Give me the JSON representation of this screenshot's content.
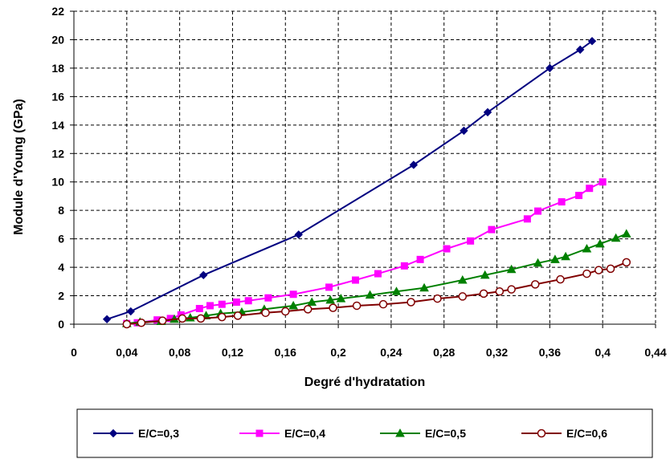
{
  "chart_data": {
    "type": "line",
    "xlabel": "Degré d'hydratation",
    "ylabel": "Module d'Young (GPa)",
    "xlim": [
      0,
      0.44
    ],
    "ylim": [
      0,
      22
    ],
    "x_ticks": [
      "0",
      "0,04",
      "0,08",
      "0,12",
      "0,16",
      "0,2",
      "0,24",
      "0,28",
      "0,32",
      "0,36",
      "0,4",
      "0,44"
    ],
    "y_ticks": [
      "0",
      "2",
      "4",
      "6",
      "8",
      "10",
      "12",
      "14",
      "16",
      "18",
      "20",
      "22"
    ],
    "grid": "dashed",
    "legend_position": "bottom",
    "series": [
      {
        "name": "E/C=0,3",
        "color": "#000080",
        "marker": "diamond",
        "points": [
          [
            0.025,
            0.35
          ],
          [
            0.043,
            0.9
          ],
          [
            0.098,
            3.45
          ],
          [
            0.17,
            6.3
          ],
          [
            0.257,
            11.2
          ],
          [
            0.295,
            13.6
          ],
          [
            0.313,
            14.9
          ],
          [
            0.36,
            18.0
          ],
          [
            0.383,
            19.3
          ],
          [
            0.392,
            19.9
          ]
        ]
      },
      {
        "name": "E/C=0,4",
        "color": "#ff00ff",
        "marker": "square",
        "points": [
          [
            0.04,
            0.05
          ],
          [
            0.048,
            0.1
          ],
          [
            0.063,
            0.3
          ],
          [
            0.073,
            0.4
          ],
          [
            0.081,
            0.65
          ],
          [
            0.095,
            1.1
          ],
          [
            0.103,
            1.3
          ],
          [
            0.112,
            1.4
          ],
          [
            0.123,
            1.55
          ],
          [
            0.132,
            1.65
          ],
          [
            0.147,
            1.85
          ],
          [
            0.166,
            2.1
          ],
          [
            0.193,
            2.6
          ],
          [
            0.213,
            3.1
          ],
          [
            0.23,
            3.55
          ],
          [
            0.25,
            4.1
          ],
          [
            0.262,
            4.55
          ],
          [
            0.282,
            5.3
          ],
          [
            0.3,
            5.85
          ],
          [
            0.316,
            6.65
          ],
          [
            0.343,
            7.4
          ],
          [
            0.351,
            7.95
          ],
          [
            0.369,
            8.6
          ],
          [
            0.382,
            9.05
          ],
          [
            0.39,
            9.55
          ],
          [
            0.4,
            10.0
          ]
        ]
      },
      {
        "name": "E/C=0,5",
        "color": "#008000",
        "marker": "triangle",
        "points": [
          [
            0.04,
            0.05
          ],
          [
            0.05,
            0.15
          ],
          [
            0.066,
            0.2
          ],
          [
            0.076,
            0.35
          ],
          [
            0.088,
            0.45
          ],
          [
            0.1,
            0.6
          ],
          [
            0.111,
            0.75
          ],
          [
            0.127,
            0.85
          ],
          [
            0.144,
            1.05
          ],
          [
            0.166,
            1.3
          ],
          [
            0.18,
            1.55
          ],
          [
            0.194,
            1.7
          ],
          [
            0.202,
            1.8
          ],
          [
            0.224,
            2.05
          ],
          [
            0.244,
            2.3
          ],
          [
            0.265,
            2.55
          ],
          [
            0.294,
            3.1
          ],
          [
            0.311,
            3.45
          ],
          [
            0.331,
            3.85
          ],
          [
            0.351,
            4.3
          ],
          [
            0.364,
            4.55
          ],
          [
            0.372,
            4.75
          ],
          [
            0.388,
            5.3
          ],
          [
            0.398,
            5.65
          ],
          [
            0.41,
            6.05
          ],
          [
            0.418,
            6.35
          ]
        ]
      },
      {
        "name": "E/C=0,6",
        "color": "#800000",
        "marker": "circle",
        "points": [
          [
            0.04,
            0.0
          ],
          [
            0.051,
            0.1
          ],
          [
            0.067,
            0.25
          ],
          [
            0.082,
            0.4
          ],
          [
            0.096,
            0.4
          ],
          [
            0.112,
            0.5
          ],
          [
            0.124,
            0.6
          ],
          [
            0.145,
            0.8
          ],
          [
            0.16,
            0.9
          ],
          [
            0.177,
            1.05
          ],
          [
            0.196,
            1.15
          ],
          [
            0.214,
            1.3
          ],
          [
            0.234,
            1.4
          ],
          [
            0.255,
            1.55
          ],
          [
            0.275,
            1.8
          ],
          [
            0.294,
            1.95
          ],
          [
            0.31,
            2.15
          ],
          [
            0.322,
            2.3
          ],
          [
            0.331,
            2.45
          ],
          [
            0.349,
            2.8
          ],
          [
            0.368,
            3.15
          ],
          [
            0.388,
            3.55
          ],
          [
            0.397,
            3.8
          ],
          [
            0.406,
            3.9
          ],
          [
            0.418,
            4.35
          ]
        ]
      }
    ]
  }
}
